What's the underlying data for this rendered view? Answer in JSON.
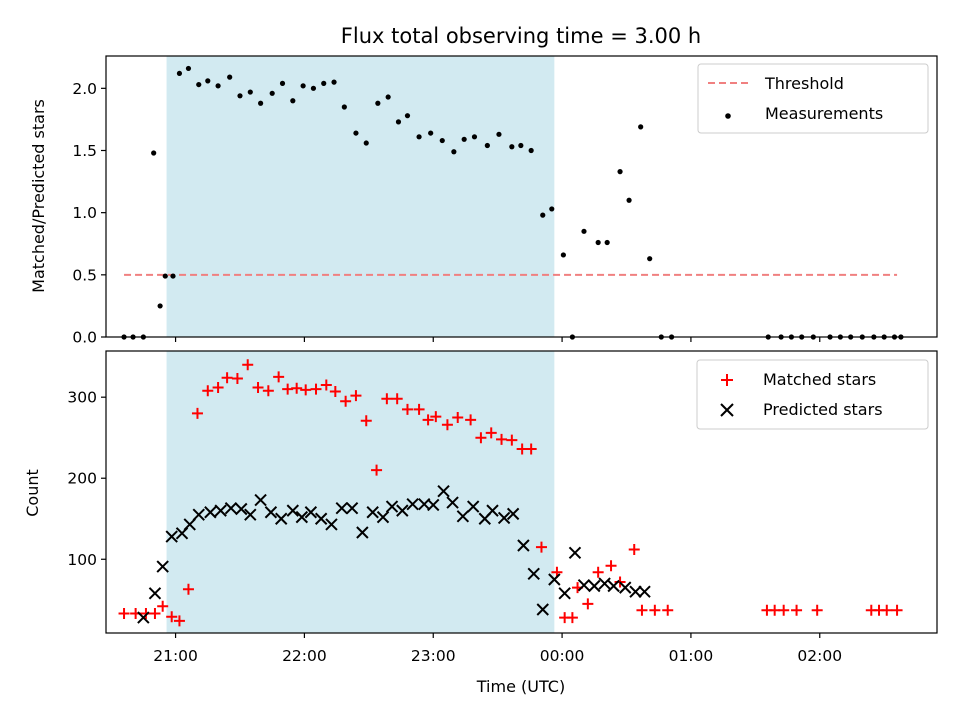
{
  "chart_data": [
    {
      "type": "scatter",
      "title": "Flux total observing time = 3.00 h",
      "xlabel": "",
      "ylabel": "Matched/Predicted stars",
      "ylim": [
        0,
        2.26
      ],
      "yticks": [
        0.0,
        0.5,
        1.0,
        1.5,
        2.0
      ],
      "ytick_labels": [
        "0.0",
        "0.5",
        "1.0",
        "1.5",
        "2.0"
      ],
      "x_unit": "hours after 00:00 UTC of first night day",
      "xlim": [
        20.46,
        26.91
      ],
      "xticks": [
        21,
        22,
        23,
        24,
        25,
        26
      ],
      "shaded_span": [
        20.93,
        23.94
      ],
      "shade_color": "#add8e6",
      "legend_position": "upper right",
      "threshold": {
        "name": "Threshold",
        "x": [
          20.6,
          26.6
        ],
        "y": 0.5,
        "color": "#f08080"
      },
      "series": [
        {
          "name": "Measurements",
          "color": "#000000",
          "x": [
            20.6,
            20.67,
            20.75,
            20.83,
            20.88,
            20.92,
            20.98,
            21.03,
            21.1,
            21.18,
            21.25,
            21.33,
            21.42,
            21.5,
            21.58,
            21.66,
            21.75,
            21.83,
            21.91,
            21.99,
            22.07,
            22.15,
            22.23,
            22.31,
            22.4,
            22.48,
            22.57,
            22.65,
            22.73,
            22.8,
            22.89,
            22.98,
            23.07,
            23.16,
            23.24,
            23.32,
            23.42,
            23.51,
            23.61,
            23.68,
            23.76,
            23.85,
            23.92,
            24.01,
            24.08,
            24.17,
            24.28,
            24.35,
            24.45,
            24.52,
            24.61,
            24.68,
            24.77,
            24.85,
            25.6,
            25.7,
            25.78,
            25.86,
            25.95,
            26.08,
            26.16,
            26.24,
            26.33,
            26.42,
            26.5,
            26.58,
            26.63
          ],
          "y": [
            0.0,
            0.0,
            0.0,
            1.48,
            0.25,
            0.49,
            0.49,
            2.12,
            2.16,
            2.03,
            2.06,
            2.02,
            2.09,
            1.94,
            1.97,
            1.88,
            1.96,
            2.04,
            1.9,
            2.02,
            2.0,
            2.04,
            2.05,
            1.85,
            1.64,
            1.56,
            1.88,
            1.93,
            1.73,
            1.78,
            1.61,
            1.64,
            1.58,
            1.49,
            1.59,
            1.61,
            1.54,
            1.63,
            1.53,
            1.54,
            1.5,
            0.98,
            1.03,
            0.66,
            0.0,
            0.85,
            0.76,
            0.76,
            1.33,
            1.1,
            1.69,
            0.63,
            0.0,
            0.0,
            0.0,
            0.0,
            0.0,
            0.0,
            0.0,
            0.0,
            0.0,
            0.0,
            0.0,
            0.0,
            0.0,
            0.0,
            0.0
          ]
        }
      ]
    },
    {
      "type": "scatter",
      "title": "",
      "xlabel": "Time (UTC)",
      "ylabel": "Count",
      "ylim": [
        9,
        357
      ],
      "yticks": [
        100,
        200,
        300
      ],
      "ytick_labels": [
        "100",
        "200",
        "300"
      ],
      "x_unit": "hours after 00:00 UTC of first night day",
      "xlim": [
        20.46,
        26.91
      ],
      "xticks": [
        21,
        22,
        23,
        24,
        25,
        26
      ],
      "xtick_labels": [
        "21:00",
        "22:00",
        "23:00",
        "00:00",
        "01:00",
        "02:00"
      ],
      "shaded_span": [
        20.93,
        23.94
      ],
      "shade_color": "#add8e6",
      "legend_position": "upper right",
      "series": [
        {
          "name": "Matched stars",
          "marker": "+",
          "color": "#ff0000",
          "x": [
            20.6,
            20.69,
            20.77,
            20.84,
            20.9,
            20.97,
            21.03,
            21.1,
            21.17,
            21.25,
            21.33,
            21.4,
            21.48,
            21.56,
            21.64,
            21.72,
            21.8,
            21.87,
            21.94,
            22.01,
            22.09,
            22.17,
            22.24,
            22.32,
            22.4,
            22.48,
            22.56,
            22.64,
            22.72,
            22.8,
            22.89,
            22.96,
            23.02,
            23.11,
            23.19,
            23.29,
            23.37,
            23.45,
            23.53,
            23.61,
            23.69,
            23.76,
            23.84,
            23.96,
            24.02,
            24.08,
            24.12,
            24.2,
            24.28,
            24.38,
            24.45,
            24.56,
            24.62,
            24.72,
            24.82,
            25.59,
            25.65,
            25.72,
            25.82,
            25.98,
            26.4,
            26.46,
            26.52,
            26.6
          ],
          "y": [
            33,
            33,
            33,
            33,
            42,
            29,
            24,
            63,
            280,
            308,
            312,
            324,
            323,
            340,
            312,
            308,
            325,
            310,
            311,
            309,
            310,
            315,
            307,
            295,
            302,
            271,
            210,
            298,
            298,
            285,
            285,
            272,
            276,
            266,
            275,
            272,
            250,
            256,
            248,
            247,
            236,
            236,
            115,
            84,
            28,
            28,
            65,
            45,
            84,
            92,
            72,
            112,
            37,
            37,
            37,
            37,
            37,
            37,
            37,
            37,
            37,
            37,
            37,
            37
          ]
        },
        {
          "name": "Predicted stars",
          "marker": "x",
          "color": "#000000",
          "x": [
            20.75,
            20.84,
            20.9,
            20.97,
            21.05,
            21.11,
            21.18,
            21.27,
            21.35,
            21.43,
            21.51,
            21.58,
            21.66,
            21.74,
            21.82,
            21.91,
            21.98,
            22.05,
            22.13,
            22.21,
            22.29,
            22.37,
            22.45,
            22.53,
            22.61,
            22.68,
            22.76,
            22.84,
            22.93,
            23.0,
            23.08,
            23.15,
            23.23,
            23.31,
            23.4,
            23.46,
            23.55,
            23.62,
            23.7,
            23.78,
            23.85,
            23.94,
            24.02,
            24.1,
            24.17,
            24.25,
            24.33,
            24.4,
            24.49,
            24.57,
            24.64
          ],
          "y": [
            28,
            58,
            91,
            128,
            132,
            143,
            155,
            158,
            160,
            163,
            162,
            155,
            173,
            158,
            150,
            160,
            152,
            158,
            150,
            143,
            163,
            163,
            133,
            158,
            152,
            165,
            160,
            168,
            168,
            167,
            184,
            170,
            153,
            165,
            150,
            160,
            151,
            156,
            117,
            82,
            38,
            75,
            58,
            108,
            68,
            67,
            70,
            67,
            65,
            60,
            60
          ]
        }
      ]
    }
  ]
}
